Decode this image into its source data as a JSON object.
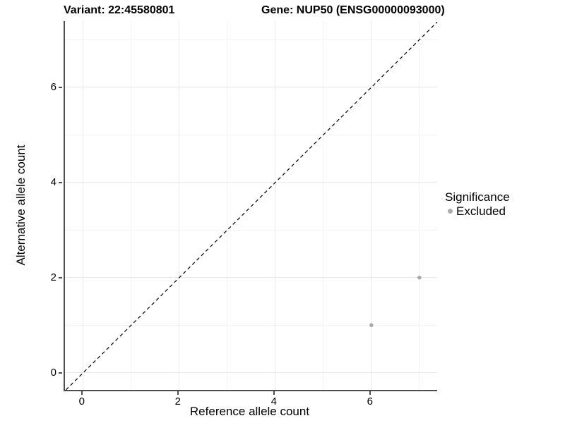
{
  "titles": {
    "variant": "Variant: 22:45580801",
    "gene": "Gene: NUP50 (ENSG00000093000)"
  },
  "chart_data": {
    "type": "scatter",
    "title": "Variant: 22:45580801   Gene: NUP50 (ENSG00000093000)",
    "xlabel": "Reference allele count",
    "ylabel": "Alternative allele count",
    "xlim": [
      -0.38,
      7.37
    ],
    "ylim": [
      -0.36,
      7.39
    ],
    "x_ticks": [
      0,
      2,
      4,
      6
    ],
    "y_ticks": [
      0,
      2,
      4,
      6
    ],
    "x_minor_gridlines": [
      1,
      3,
      5,
      7
    ],
    "y_minor_gridlines": [
      1,
      3,
      5,
      7
    ],
    "grid": true,
    "series": [
      {
        "name": "Excluded",
        "points": [
          {
            "x": 6,
            "y": 1
          },
          {
            "x": 7,
            "y": 2
          }
        ],
        "color": "#ababab",
        "marker": "circle",
        "marker_radius": 2.8
      }
    ],
    "reference_line": {
      "type": "identity",
      "equation": "y = x",
      "style": "dashed",
      "color": "#000000"
    },
    "legend": {
      "title": "Significance",
      "position": "right",
      "items": [
        {
          "label": "Excluded",
          "color": "#ababab",
          "marker": "circle"
        }
      ]
    }
  },
  "colors": {
    "background": "#ffffff",
    "grid_major": "#e9e9e9",
    "grid_minor": "#f2f2f2",
    "axis_line": "#4d4d4d",
    "tick": "#4d4d4d",
    "point": "#ababab",
    "text": "#000000"
  }
}
